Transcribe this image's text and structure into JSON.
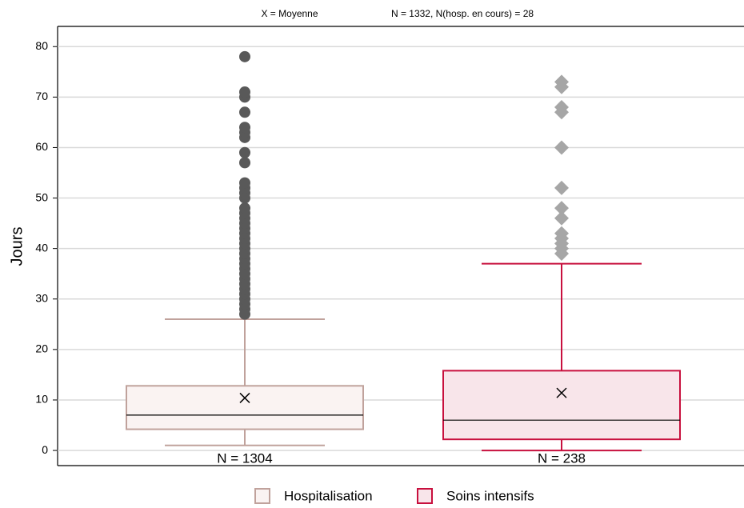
{
  "chart_data": {
    "type": "box",
    "annotations": [
      "X = Moyenne",
      "N = 1332, N(hosp. en cours) = 28"
    ],
    "y_label": "Jours",
    "categories": [
      "N = 1304",
      "N = 238"
    ],
    "ylim": [
      -3,
      84
    ],
    "yticks": [
      0,
      10,
      20,
      30,
      40,
      50,
      60,
      70,
      80
    ],
    "grid": true,
    "legend": "bottom",
    "series": [
      {
        "name": "Hospitalisation",
        "color": "#c0a29c",
        "fill": "#faf3f2",
        "outlier_color": "#595959",
        "marker": "circle",
        "min": 1,
        "q1": 4.2,
        "median": 7,
        "q3": 12.8,
        "max": 26,
        "mean": 10.4,
        "outliers": [
          27,
          28,
          29,
          30,
          31,
          32,
          33,
          34,
          35,
          36,
          37,
          38,
          39,
          40,
          41,
          42,
          43,
          44,
          45,
          46,
          47,
          48,
          50,
          51,
          52,
          53,
          57,
          59,
          62,
          63,
          64,
          67,
          70,
          71,
          78
        ]
      },
      {
        "name": "Soins intensifs",
        "color": "#c8103e",
        "fill": "#f8e5ea",
        "outlier_color": "#a6a6a6",
        "marker": "diamond",
        "min": 0,
        "q1": 2.2,
        "median": 6,
        "q3": 15.8,
        "max": 37,
        "mean": 11.4,
        "outliers": [
          39,
          40,
          41,
          42,
          43,
          46,
          48,
          52,
          60,
          67,
          68,
          72,
          73
        ]
      }
    ]
  }
}
